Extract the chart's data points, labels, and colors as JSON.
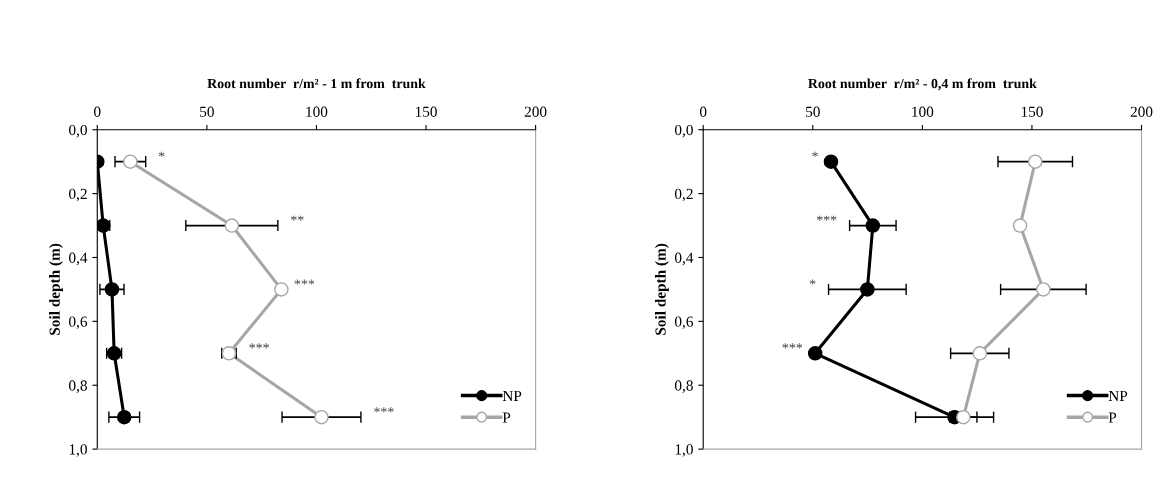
{
  "chart_data": [
    {
      "type": "line",
      "title": "Root number  r/m² - 1 m from  trunk",
      "ylabel": "Soil depth (m)",
      "xlim": [
        0,
        200
      ],
      "xticks": [
        0,
        50,
        100,
        150,
        200
      ],
      "ylim": [
        1.0,
        0.0
      ],
      "yticks": [
        {
          "value": 0.0,
          "label": "0,0"
        },
        {
          "value": 0.2,
          "label": "0,2"
        },
        {
          "value": 0.4,
          "label": "0,4"
        },
        {
          "value": 0.6,
          "label": "0,6"
        },
        {
          "value": 0.8,
          "label": "0,8"
        },
        {
          "value": 1.0,
          "label": "1,0"
        }
      ],
      "grid": false,
      "legend": "bottom right",
      "marker": "circle",
      "line_style": "solid",
      "series": [
        {
          "name": "NP",
          "color": "#000000",
          "x": [
            0,
            2.7,
            6.7,
            7.7,
            12.3
          ],
          "values": [
            0.1,
            0.3,
            0.5,
            0.7,
            0.9
          ],
          "xerrors": [
            null,
            3,
            5.5,
            3.4,
            7
          ]
        },
        {
          "name": "P",
          "color": "#a6a6a6",
          "x": [
            15.1,
            61.4,
            84,
            60.1,
            102.3
          ],
          "values": [
            0.1,
            0.3,
            0.5,
            0.7,
            0.9
          ],
          "xerrors": [
            7,
            21,
            null,
            3.3,
            18
          ]
        }
      ],
      "annotations": [
        "*",
        "**",
        "***",
        "***",
        "***"
      ]
    },
    {
      "type": "line",
      "title": "Root number  r/m² - 0,4 m from  trunk",
      "ylabel": "Soil depth (m)",
      "xlim": [
        0,
        200
      ],
      "xticks": [
        0,
        50,
        100,
        150,
        200
      ],
      "ylim": [
        1.0,
        0.0
      ],
      "yticks": [
        {
          "value": 0.0,
          "label": "0,0"
        },
        {
          "value": 0.2,
          "label": "0,2"
        },
        {
          "value": 0.4,
          "label": "0,4"
        },
        {
          "value": 0.6,
          "label": "0,6"
        },
        {
          "value": 0.8,
          "label": "0,8"
        },
        {
          "value": 1.0,
          "label": "1,0"
        }
      ],
      "grid": false,
      "legend": "bottom right",
      "marker": "circle",
      "line_style": "solid",
      "series": [
        {
          "name": "NP",
          "color": "#000000",
          "x": [
            58.3,
            77.4,
            74.9,
            51.1,
            114.7
          ],
          "values": [
            0.1,
            0.3,
            0.5,
            0.7,
            0.9
          ],
          "xerrors": [
            null,
            10.6,
            17.7,
            null,
            17.8
          ]
        },
        {
          "name": "P",
          "color": "#a6a6a6",
          "x": [
            151.5,
            144.6,
            155.2,
            126.2,
            118.7
          ],
          "values": [
            0.1,
            0.3,
            0.5,
            0.7,
            0.9
          ],
          "xerrors": [
            17,
            null,
            19.5,
            13.3,
            6.2
          ]
        }
      ],
      "annotations": [
        "*",
        "***",
        "*",
        "***"
      ]
    }
  ]
}
